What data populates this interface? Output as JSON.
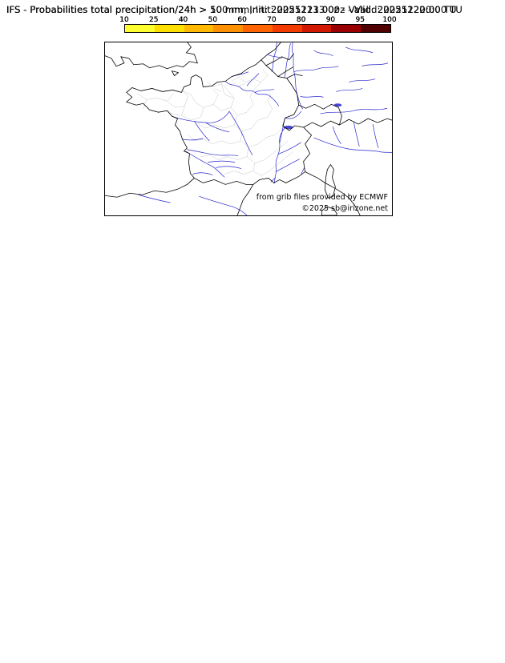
{
  "panels": [
    {
      "id": "panel-10mm",
      "threshold_mm": 10,
      "title": "IFS - Probabilities total precipitation/24h > 10 mm, Init: 20251213 00z - Valid: 20251220:00 TU"
    },
    {
      "id": "panel-50mm",
      "threshold_mm": 50,
      "title": "IFS - Probabilities total precipitation/24h > 50 mm, Init: 20251213 00z - Valid: 20251220:00 TU"
    },
    {
      "id": "panel-100mm",
      "threshold_mm": 100,
      "title": "IFS - Probabilities total precipitation/24h > 100 mm, Init: 20251213 00z - Valid: 20251220:00 TU"
    }
  ],
  "colorbar": {
    "ticks": [
      "10",
      "25",
      "40",
      "50",
      "60",
      "70",
      "80",
      "90",
      "95",
      "100"
    ],
    "colors": [
      "#ffff30",
      "#ffdf00",
      "#ffb900",
      "#ff9000",
      "#ff6400",
      "#f53c00",
      "#d21900",
      "#9b0000",
      "#500000"
    ]
  },
  "credits": {
    "line1": "from grib files provided by ECMWF",
    "line2": "©2025 sb@irizone.net"
  }
}
